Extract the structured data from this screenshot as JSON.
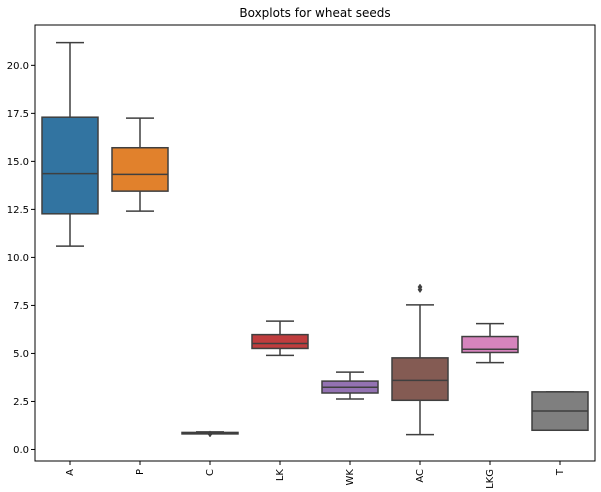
{
  "chart_data": {
    "type": "box",
    "title": "Boxplots for wheat seeds",
    "xlabel": "",
    "ylabel": "",
    "ylim": [
      -0.6,
      22.1
    ],
    "yticks": [
      0.0,
      2.5,
      5.0,
      7.5,
      10.0,
      12.5,
      15.0,
      17.5,
      20.0
    ],
    "ytick_labels": [
      "0.0",
      "2.5",
      "5.0",
      "7.5",
      "10.0",
      "12.5",
      "15.0",
      "17.5",
      "20.0"
    ],
    "grid": false,
    "categories": [
      "A",
      "P",
      "C",
      "LK",
      "WK",
      "AC",
      "LKG",
      "T"
    ],
    "boxes": [
      {
        "name": "A",
        "color": "#3274a1",
        "min": 10.59,
        "q1": 12.27,
        "median": 14.36,
        "q3": 17.3,
        "max": 21.18,
        "outliers": []
      },
      {
        "name": "P",
        "color": "#e1812c",
        "min": 12.41,
        "q1": 13.45,
        "median": 14.32,
        "q3": 15.71,
        "max": 17.25,
        "outliers": []
      },
      {
        "name": "C",
        "color": "#3a923a",
        "min": 0.83,
        "q1": 0.857,
        "median": 0.873,
        "q3": 0.888,
        "max": 0.918,
        "outliers": [
          0.808,
          0.81
        ]
      },
      {
        "name": "LK",
        "color": "#c03d3e",
        "min": 4.9,
        "q1": 5.26,
        "median": 5.52,
        "q3": 5.98,
        "max": 6.68,
        "outliers": []
      },
      {
        "name": "WK",
        "color": "#9372b2",
        "min": 2.63,
        "q1": 2.94,
        "median": 3.24,
        "q3": 3.56,
        "max": 4.03,
        "outliers": []
      },
      {
        "name": "AC",
        "color": "#845b53",
        "min": 0.77,
        "q1": 2.56,
        "median": 3.6,
        "q3": 4.77,
        "max": 7.53,
        "outliers": [
          8.32,
          8.46
        ]
      },
      {
        "name": "LKG",
        "color": "#d684bd",
        "min": 4.52,
        "q1": 5.05,
        "median": 5.22,
        "q3": 5.88,
        "max": 6.55,
        "outliers": []
      },
      {
        "name": "T",
        "color": "#7f7f7f",
        "min": 1.0,
        "q1": 1.0,
        "median": 2.0,
        "q3": 3.0,
        "max": 3.0,
        "outliers": []
      }
    ]
  }
}
